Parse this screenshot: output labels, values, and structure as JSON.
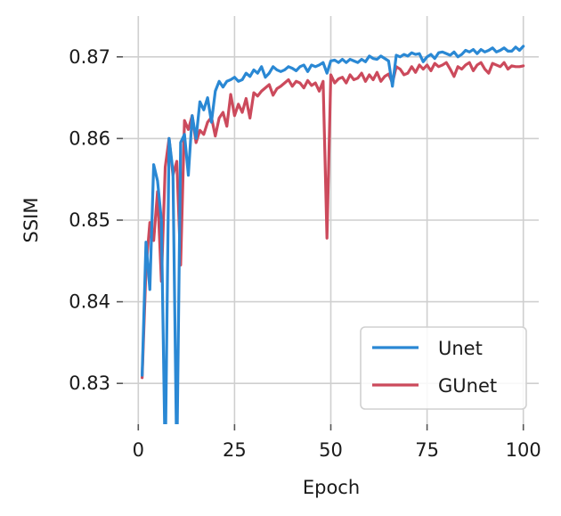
{
  "chart_data": {
    "type": "line",
    "xlabel": "Epoch",
    "ylabel": "SSIM",
    "xlim": [
      -4,
      104
    ],
    "ylim": [
      0.825,
      0.875
    ],
    "xticks": [
      0,
      25,
      50,
      75,
      100
    ],
    "yticks": [
      0.83,
      0.84,
      0.85,
      0.86,
      0.87
    ],
    "xtick_labels": [
      "0",
      "25",
      "50",
      "75",
      "100"
    ],
    "ytick_labels": [
      "0.83",
      "0.84",
      "0.85",
      "0.86",
      "0.87"
    ],
    "grid": true,
    "legend_position": "lower-right",
    "x": [
      1,
      2,
      3,
      4,
      5,
      6,
      7,
      8,
      9,
      10,
      11,
      12,
      13,
      14,
      15,
      16,
      17,
      18,
      19,
      20,
      21,
      22,
      23,
      24,
      25,
      26,
      27,
      28,
      29,
      30,
      31,
      32,
      33,
      34,
      35,
      36,
      37,
      38,
      39,
      40,
      41,
      42,
      43,
      44,
      45,
      46,
      47,
      48,
      49,
      50,
      51,
      52,
      53,
      54,
      55,
      56,
      57,
      58,
      59,
      60,
      61,
      62,
      63,
      64,
      65,
      66,
      67,
      68,
      69,
      70,
      71,
      72,
      73,
      74,
      75,
      76,
      77,
      78,
      79,
      80,
      81,
      82,
      83,
      84,
      85,
      86,
      87,
      88,
      89,
      90,
      91,
      92,
      93,
      94,
      95,
      96,
      97,
      98,
      99,
      100
    ],
    "series": [
      {
        "name": "Unet",
        "color": "#2a88d4",
        "values": [
          0.831,
          0.8473,
          0.8415,
          0.8568,
          0.8548,
          0.85,
          0.82,
          0.86,
          0.856,
          0.82,
          0.8595,
          0.8605,
          0.8555,
          0.8628,
          0.86,
          0.8645,
          0.8635,
          0.865,
          0.862,
          0.8658,
          0.867,
          0.8663,
          0.867,
          0.8672,
          0.8675,
          0.867,
          0.8672,
          0.868,
          0.8676,
          0.8684,
          0.868,
          0.8688,
          0.8675,
          0.868,
          0.8688,
          0.8684,
          0.8682,
          0.8684,
          0.8688,
          0.8686,
          0.8683,
          0.8688,
          0.869,
          0.8682,
          0.869,
          0.8688,
          0.869,
          0.8693,
          0.868,
          0.8695,
          0.8696,
          0.8693,
          0.8697,
          0.8693,
          0.8697,
          0.8695,
          0.8693,
          0.8697,
          0.8694,
          0.8701,
          0.8698,
          0.8697,
          0.8701,
          0.8698,
          0.8695,
          0.8664,
          0.8702,
          0.87,
          0.8703,
          0.8701,
          0.8705,
          0.8703,
          0.8704,
          0.8694,
          0.87,
          0.8703,
          0.8698,
          0.8705,
          0.8706,
          0.8704,
          0.8702,
          0.8706,
          0.87,
          0.8703,
          0.8708,
          0.8706,
          0.8709,
          0.8704,
          0.8709,
          0.8706,
          0.8708,
          0.8711,
          0.8706,
          0.8708,
          0.8711,
          0.8707,
          0.8707,
          0.8712,
          0.8708,
          0.8713
        ]
      },
      {
        "name": "GUnet",
        "color": "#cc4a5c",
        "values": [
          0.8307,
          0.844,
          0.8497,
          0.8475,
          0.8535,
          0.8425,
          0.8565,
          0.86,
          0.8555,
          0.8572,
          0.8445,
          0.8622,
          0.8611,
          0.8628,
          0.8595,
          0.861,
          0.8605,
          0.862,
          0.8626,
          0.8603,
          0.8625,
          0.8632,
          0.8615,
          0.8654,
          0.8628,
          0.8642,
          0.8632,
          0.8649,
          0.8625,
          0.8656,
          0.8652,
          0.8658,
          0.8662,
          0.8666,
          0.8653,
          0.8661,
          0.8664,
          0.8668,
          0.8672,
          0.8664,
          0.867,
          0.8668,
          0.8662,
          0.8671,
          0.8665,
          0.8668,
          0.8658,
          0.867,
          0.8478,
          0.8678,
          0.8668,
          0.8673,
          0.8675,
          0.8668,
          0.8678,
          0.8672,
          0.8674,
          0.868,
          0.867,
          0.8678,
          0.8672,
          0.8681,
          0.867,
          0.8676,
          0.8679,
          0.8668,
          0.8688,
          0.8685,
          0.8678,
          0.868,
          0.8688,
          0.8681,
          0.869,
          0.8685,
          0.869,
          0.8683,
          0.8692,
          0.8688,
          0.869,
          0.8693,
          0.8685,
          0.8676,
          0.8688,
          0.8685,
          0.869,
          0.8693,
          0.8683,
          0.869,
          0.8693,
          0.8685,
          0.868,
          0.8692,
          0.869,
          0.8688,
          0.8693,
          0.8685,
          0.8689,
          0.8688,
          0.8688,
          0.8689
        ]
      }
    ]
  }
}
